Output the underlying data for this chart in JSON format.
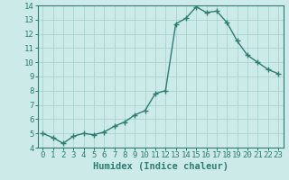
{
  "x": [
    0,
    1,
    2,
    3,
    4,
    5,
    6,
    7,
    8,
    9,
    10,
    11,
    12,
    13,
    14,
    15,
    16,
    17,
    18,
    19,
    20,
    21,
    22,
    23
  ],
  "y": [
    5.0,
    4.7,
    4.3,
    4.8,
    5.0,
    4.9,
    5.1,
    5.5,
    5.8,
    6.3,
    6.6,
    7.8,
    8.0,
    12.7,
    13.1,
    13.9,
    13.5,
    13.6,
    12.8,
    11.5,
    10.5,
    10.0,
    9.5,
    9.2
  ],
  "xlabel": "Humidex (Indice chaleur)",
  "ylim": [
    4,
    14
  ],
  "xlim_min": -0.5,
  "xlim_max": 23.5,
  "yticks": [
    4,
    5,
    6,
    7,
    8,
    9,
    10,
    11,
    12,
    13,
    14
  ],
  "xticks": [
    0,
    1,
    2,
    3,
    4,
    5,
    6,
    7,
    8,
    9,
    10,
    11,
    12,
    13,
    14,
    15,
    16,
    17,
    18,
    19,
    20,
    21,
    22,
    23
  ],
  "line_color": "#2e7d6e",
  "marker": "+",
  "marker_size": 4,
  "marker_lw": 1.0,
  "bg_color": "#cceae7",
  "grid_color": "#aad4cf",
  "xlabel_fontsize": 7.5,
  "tick_fontsize": 6.5,
  "linewidth": 1.0
}
